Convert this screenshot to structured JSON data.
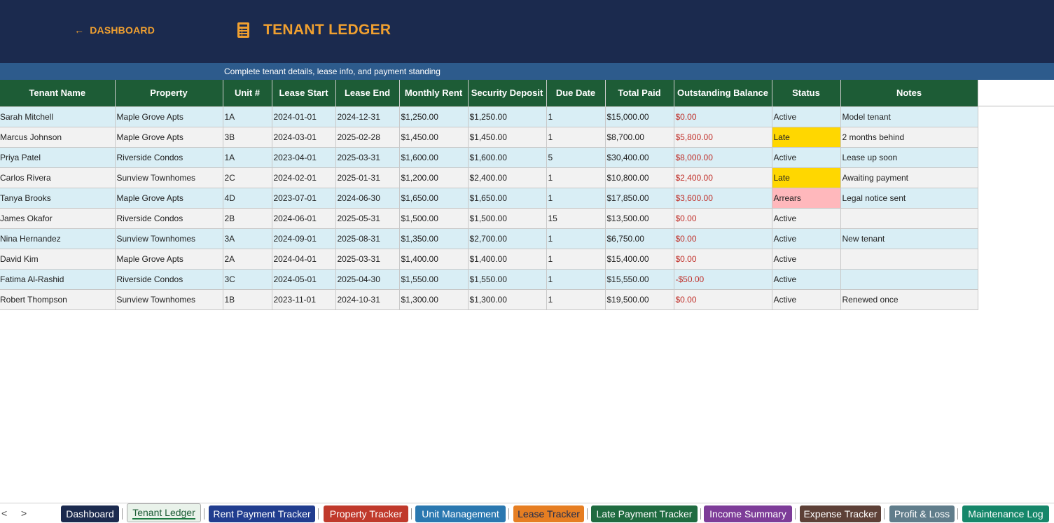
{
  "header": {
    "back_label": "DASHBOARD",
    "back_arrow": "←",
    "title": "TENANT LEDGER",
    "subtitle": "Complete tenant details, lease info, and payment standing",
    "icon": "document-icon"
  },
  "colors": {
    "header_bg": "#1b2a4e",
    "accent": "#f0a030",
    "subbar_bg": "#2d5b8c",
    "table_header_bg": "#1d5c36",
    "row_odd": "#d9eef5",
    "row_even": "#f2f2f2",
    "late": "#ffd700",
    "arrears": "#ffb8bc",
    "negative_text": "#c0302a"
  },
  "table": {
    "columns": [
      "Tenant Name",
      "Property",
      "Unit #",
      "Lease Start",
      "Lease End",
      "Monthly Rent",
      "Security Deposit",
      "Due Date",
      "Total Paid",
      "Outstanding Balance",
      "Status",
      "Notes"
    ],
    "rows": [
      [
        "Sarah Mitchell",
        "Maple Grove Apts",
        "1A",
        "2024-01-01",
        "2024-12-31",
        "$1,250.00",
        "$1,250.00",
        "1",
        "$15,000.00",
        "$0.00",
        "Active",
        "Model tenant"
      ],
      [
        "Marcus Johnson",
        "Maple Grove Apts",
        "3B",
        "2024-03-01",
        "2025-02-28",
        "$1,450.00",
        "$1,450.00",
        "1",
        "$8,700.00",
        "$5,800.00",
        "Late",
        "2 months behind"
      ],
      [
        "Priya Patel",
        "Riverside Condos",
        "1A",
        "2023-04-01",
        "2025-03-31",
        "$1,600.00",
        "$1,600.00",
        "5",
        "$30,400.00",
        "$8,000.00",
        "Active",
        "Lease up soon"
      ],
      [
        "Carlos Rivera",
        "Sunview Townhomes",
        "2C",
        "2024-02-01",
        "2025-01-31",
        "$1,200.00",
        "$2,400.00",
        "1",
        "$10,800.00",
        "$2,400.00",
        "Late",
        "Awaiting payment"
      ],
      [
        "Tanya Brooks",
        "Maple Grove Apts",
        "4D",
        "2023-07-01",
        "2024-06-30",
        "$1,650.00",
        "$1,650.00",
        "1",
        "$17,850.00",
        "$3,600.00",
        "Arrears",
        "Legal notice sent"
      ],
      [
        "James Okafor",
        "Riverside Condos",
        "2B",
        "2024-06-01",
        "2025-05-31",
        "$1,500.00",
        "$1,500.00",
        "15",
        "$13,500.00",
        "$0.00",
        "Active",
        ""
      ],
      [
        "Nina Hernandez",
        "Sunview Townhomes",
        "3A",
        "2024-09-01",
        "2025-08-31",
        "$1,350.00",
        "$2,700.00",
        "1",
        "$6,750.00",
        "$0.00",
        "Active",
        "New tenant"
      ],
      [
        "David Kim",
        "Maple Grove Apts",
        "2A",
        "2024-04-01",
        "2025-03-31",
        "$1,400.00",
        "$1,400.00",
        "1",
        "$15,400.00",
        "$0.00",
        "Active",
        ""
      ],
      [
        "Fatima Al-Rashid",
        "Riverside Condos",
        "3C",
        "2024-05-01",
        "2025-04-30",
        "$1,550.00",
        "$1,550.00",
        "1",
        "$15,550.00",
        "-$50.00",
        "Active",
        ""
      ],
      [
        "Robert Thompson",
        "Sunview Townhomes",
        "1B",
        "2023-11-01",
        "2024-10-31",
        "$1,300.00",
        "$1,300.00",
        "1",
        "$19,500.00",
        "$0.00",
        "Active",
        "Renewed once"
      ]
    ]
  },
  "tabs": {
    "prev": "<",
    "next": ">",
    "items": [
      {
        "label": "Dashboard",
        "color": "#1b2a4e"
      },
      {
        "label": "Tenant Ledger",
        "color": "#e9f2ea",
        "active": true
      },
      {
        "label": "Rent Payment Tracker",
        "color": "#213d8f"
      },
      {
        "label": "Property Tracker",
        "color": "#c0392b"
      },
      {
        "label": "Unit Management",
        "color": "#2a78b0"
      },
      {
        "label": "Lease Tracker",
        "color": "#e67e22"
      },
      {
        "label": "Late Payment Tracker",
        "color": "#1f6b40"
      },
      {
        "label": "Income Summary",
        "color": "#7d3c98"
      },
      {
        "label": "Expense Tracker",
        "color": "#5d4037"
      },
      {
        "label": "Profit & Loss",
        "color": "#607d8b"
      },
      {
        "label": "Maintenance Log",
        "color": "#16876a"
      }
    ]
  }
}
